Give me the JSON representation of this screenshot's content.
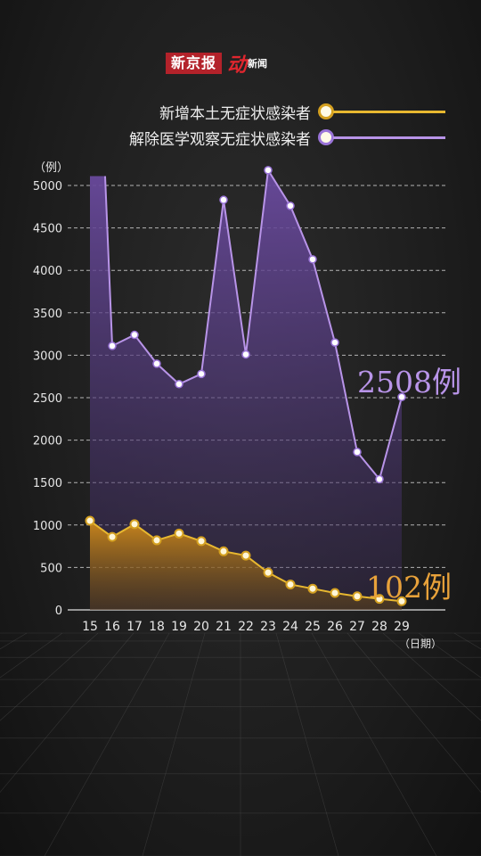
{
  "header": {
    "brand_name": "新京报",
    "sub_logo_big": "动",
    "sub_logo_small": "新闻"
  },
  "legend": [
    {
      "label": "新增本土无症状感染者",
      "color": "#e8b830",
      "dot_ring": "#d4a020"
    },
    {
      "label": "解除医学观察无症状感染者",
      "color": "#b894e8",
      "dot_ring": "#9a74d8"
    }
  ],
  "chart_data": {
    "type": "area",
    "x": [
      "15",
      "16",
      "17",
      "18",
      "19",
      "20",
      "21",
      "22",
      "23",
      "24",
      "25",
      "26",
      "27",
      "28",
      "29"
    ],
    "xlabel": "（日期）",
    "ylabel": "（例）",
    "ylim": [
      0,
      5000
    ],
    "yticks": [
      0,
      500,
      1000,
      1500,
      2000,
      2500,
      3000,
      3500,
      4000,
      4500,
      5000
    ],
    "grid": true,
    "series": [
      {
        "name": "解除医学观察无症状感染者",
        "color": "#b894e8",
        "start_value": 5110,
        "values": [
          null,
          3110,
          3240,
          2900,
          2660,
          2780,
          4830,
          3010,
          5180,
          4760,
          4130,
          3150,
          1860,
          1540,
          2508
        ]
      },
      {
        "name": "新增本土无症状感染者",
        "color": "#e8b830",
        "values": [
          1050,
          860,
          1010,
          820,
          900,
          810,
          690,
          640,
          440,
          300,
          250,
          200,
          160,
          130,
          102
        ]
      }
    ],
    "annotations": [
      {
        "text": "2508例",
        "series": 0,
        "color": "#b894e8"
      },
      {
        "text": "102例",
        "series": 1,
        "color": "#e8a23a"
      }
    ]
  }
}
